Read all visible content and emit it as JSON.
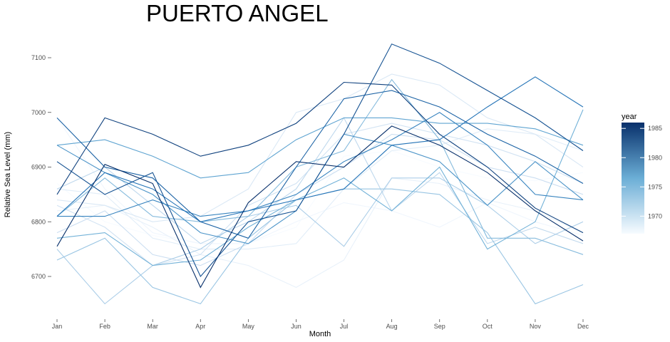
{
  "chart_data": {
    "type": "line",
    "title": "PUERTO ANGEL",
    "xlabel": "Month",
    "ylabel": "Relative Sea Level (mm)",
    "categories": [
      "Jan",
      "Feb",
      "Mar",
      "Apr",
      "May",
      "Jun",
      "Jul",
      "Aug",
      "Sep",
      "Oct",
      "Nov",
      "Dec"
    ],
    "ylim": [
      6635,
      7140
    ],
    "yticks": [
      6700,
      6800,
      6900,
      7000,
      7100
    ],
    "grid": false,
    "legend": {
      "title": "year",
      "placement": "right",
      "ticks": [
        1970,
        1975,
        1980,
        1985
      ],
      "range": [
        1967,
        1986
      ],
      "color_low": "#f7fbff",
      "color_high": "#08306b"
    },
    "series": [
      {
        "year": 1967,
        "values": [
          6870,
          6800,
          6775,
          6760,
          6760,
          6790,
          6920,
          6930,
          6900,
          6880,
          6875,
          6890
        ]
      },
      {
        "year": 1968,
        "values": [
          6990,
          6860,
          6780,
          6760,
          6760,
          6800,
          6835,
          6820,
          6790,
          6835,
          6800,
          6775
        ]
      },
      {
        "year": 1969,
        "values": [
          6820,
          6830,
          6790,
          6740,
          6720,
          6680,
          6730,
          6880,
          6870,
          6840,
          6820,
          6780
        ]
      },
      {
        "year": 1970,
        "values": [
          6860,
          6850,
          6770,
          6750,
          6750,
          6760,
          6860,
          6930,
          6940,
          6970,
          6960,
          6930
        ]
      },
      {
        "year": 1971,
        "values": [
          6840,
          6830,
          6800,
          6810,
          6860,
          7000,
          7025,
          7070,
          7050,
          6990,
          6960,
          6900
        ]
      },
      {
        "year": 1972,
        "values": [
          6830,
          6790,
          6720,
          6740,
          6830,
          6870,
          6960,
          6980,
          6960,
          6940,
          6910,
          6870
        ]
      },
      {
        "year": 1973,
        "values": [
          6780,
          6820,
          6740,
          6720,
          6760,
          6850,
          6900,
          6960,
          6950,
          6900,
          6880,
          6850
        ]
      },
      {
        "year": 1974,
        "values": [
          6860,
          6900,
          6830,
          6760,
          6800,
          6860,
          6990,
          6820,
          6890,
          6760,
          6790,
          6760
        ]
      },
      {
        "year": 1975,
        "values": [
          6750,
          6650,
          6720,
          6750,
          6810,
          6830,
          6755,
          6880,
          6880,
          6830,
          6760,
          6800
        ]
      },
      {
        "year": 1976,
        "values": [
          6730,
          6770,
          6680,
          6650,
          6770,
          6840,
          6860,
          6860,
          6850,
          6780,
          6650,
          6685
        ]
      },
      {
        "year": 1977,
        "values": [
          6810,
          6880,
          6810,
          6800,
          6810,
          6900,
          6930,
          7060,
          6950,
          6770,
          6770,
          6740
        ]
      },
      {
        "year": 1978,
        "values": [
          6770,
          6780,
          6720,
          6730,
          6790,
          6840,
          6880,
          6820,
          6900,
          6750,
          6800,
          7005
        ]
      },
      {
        "year": 1979,
        "values": [
          6940,
          6950,
          6920,
          6880,
          6890,
          6950,
          6990,
          6990,
          6980,
          6980,
          6970,
          6940
        ]
      },
      {
        "year": 1980,
        "values": [
          6940,
          6890,
          6850,
          6780,
          6760,
          6820,
          6960,
          6940,
          6910,
          6830,
          6910,
          6840
        ]
      },
      {
        "year": 1981,
        "values": [
          6810,
          6810,
          6840,
          6810,
          6820,
          6850,
          6910,
          6950,
          7000,
          6940,
          6850,
          6840
        ]
      },
      {
        "year": 1982,
        "values": [
          6810,
          6890,
          6860,
          6800,
          6820,
          6840,
          6860,
          6940,
          6950,
          7010,
          7065,
          7010
        ]
      },
      {
        "year": 1983,
        "values": [
          6990,
          6900,
          6880,
          6800,
          6770,
          6900,
          7025,
          7040,
          7010,
          6960,
          6920,
          6870
        ]
      },
      {
        "year": 1984,
        "values": [
          6910,
          6850,
          6890,
          6700,
          6800,
          6820,
          6960,
          7125,
          7090,
          7040,
          6990,
          6930
        ]
      },
      {
        "year": 1985,
        "values": [
          6850,
          6990,
          6960,
          6920,
          6940,
          6980,
          7055,
          7050,
          6960,
          6900,
          6825,
          6780
        ]
      },
      {
        "year": 1986,
        "values": [
          6755,
          6905,
          6870,
          6680,
          6835,
          6910,
          6900,
          6975,
          6940,
          6890,
          6820,
          6765
        ]
      }
    ]
  }
}
